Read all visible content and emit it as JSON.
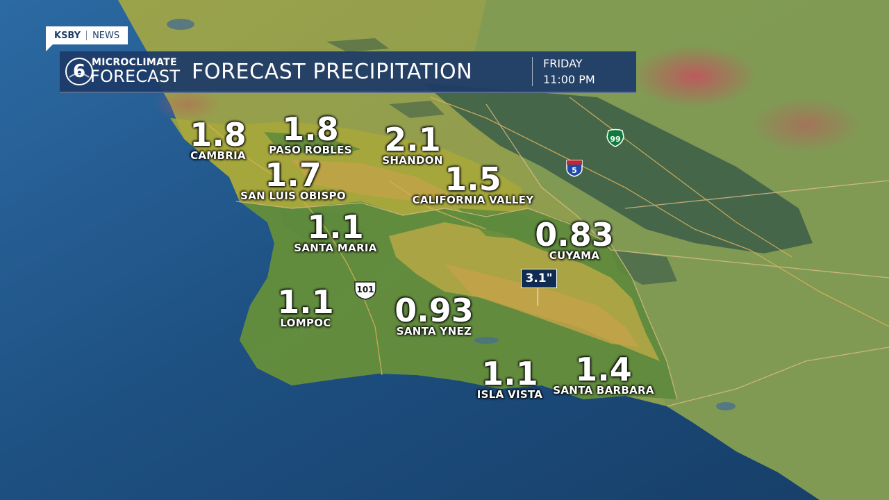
{
  "brand": {
    "station": "KSBY",
    "section": "NEWS"
  },
  "banner": {
    "logo_top": "MICROCLIMATE",
    "logo_bottom": "FORECAST",
    "logo_number": "6",
    "title": "FORECAST PRECIPITATION",
    "day": "FRIDAY",
    "time": "11:00 PM"
  },
  "cities": [
    {
      "value": "1.8",
      "name": "CAMBRIA"
    },
    {
      "value": "1.8",
      "name": "PASO ROBLES"
    },
    {
      "value": "2.1",
      "name": "SHANDON"
    },
    {
      "value": "1.7",
      "name": "SAN LUIS OBISPO"
    },
    {
      "value": "1.5",
      "name": "CALIFORNIA VALLEY"
    },
    {
      "value": "1.1",
      "name": "SANTA MARIA"
    },
    {
      "value": "0.83",
      "name": "CUYAMA"
    },
    {
      "value": "1.1",
      "name": "LOMPOC"
    },
    {
      "value": "0.93",
      "name": "SANTA YNEZ"
    },
    {
      "value": "1.1",
      "name": "ISLA VISTA"
    },
    {
      "value": "1.4",
      "name": "SANTA BARBARA"
    }
  ],
  "max_callout": "3.1\"",
  "route_shields": [
    {
      "label": "101",
      "type": "us-route"
    },
    {
      "label": "5",
      "type": "interstate"
    },
    {
      "label": "99",
      "type": "state-route"
    }
  ],
  "colors": {
    "ocean": "#1d4f80",
    "banner": "#1d3a68",
    "precip_low": "#5d8a3c",
    "precip_mid": "#a8a83a",
    "precip_high": "#c6a24a",
    "land_dry": "#7e9a55",
    "valley": "#3f6049",
    "mountain_peak": "#b95860",
    "county_line": "#e6c08a"
  }
}
